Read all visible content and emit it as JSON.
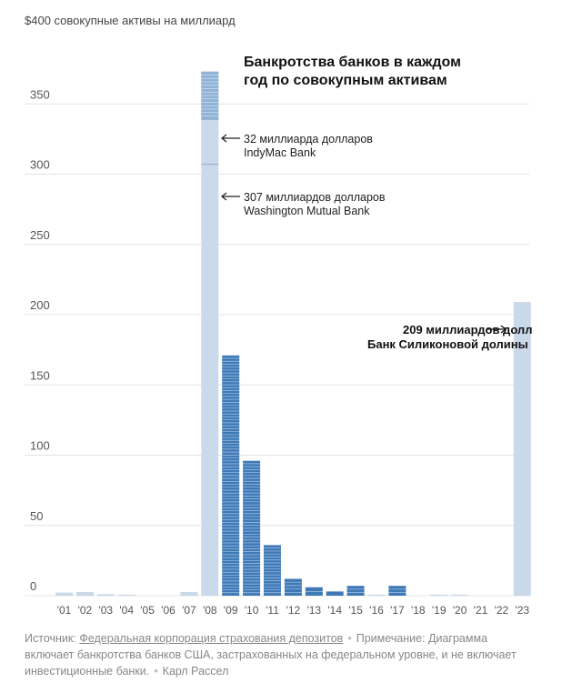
{
  "chart_data": {
    "type": "bar",
    "title_lines": [
      "Банкротства банков в каждом",
      "год по совокупным активам"
    ],
    "ylabel": "$400 совокупные активы на миллиард",
    "ylim": [
      0,
      400
    ],
    "yticks": [
      0,
      50,
      100,
      150,
      200,
      250,
      300,
      350
    ],
    "grid": true,
    "categories": [
      "'01",
      "'02",
      "'03",
      "'04",
      "'05",
      "'06",
      "'07",
      "'08",
      "'09",
      "'10",
      "'11",
      "'12",
      "'13",
      "'14",
      "'15",
      "'16",
      "'17",
      "'18",
      "'19",
      "'20",
      "'21",
      "'22",
      "'23"
    ],
    "values": [
      2.2,
      2.6,
      1.1,
      0.2,
      0,
      0,
      2.6,
      373,
      171,
      96,
      36,
      12,
      6,
      3,
      7,
      0.7,
      7,
      0,
      0.3,
      0.8,
      0,
      0,
      209
    ],
    "bar_color_light": "#c9d9ea",
    "bar_color_dark": "#3e7ab8",
    "highlight_segments": [
      {
        "year": "'08",
        "value": 32
      },
      {
        "year": "'08",
        "value": 307
      },
      {
        "year": "'23",
        "value": 209
      }
    ],
    "annotations": [
      {
        "year": "'08",
        "lines": [
          "32 миллиарда долларов",
          "IndyMac Bank"
        ]
      },
      {
        "year": "'08",
        "lines": [
          "307 миллиардов долларов",
          "Washington Mutual Bank"
        ]
      },
      {
        "year": "'23",
        "lines": [
          "209 миллиардов долл",
          "Банк Силиконовой долины"
        ]
      }
    ]
  },
  "footer": {
    "source_label": "Источник:",
    "source_link": "Федеральная корпорация страхования депозитов",
    "note": "Примечание: Диаграмма включает банкротства банков США, застрахованных на федеральном уровне, и не включает инвестиционные банки.",
    "author": "Карл Рассел"
  }
}
